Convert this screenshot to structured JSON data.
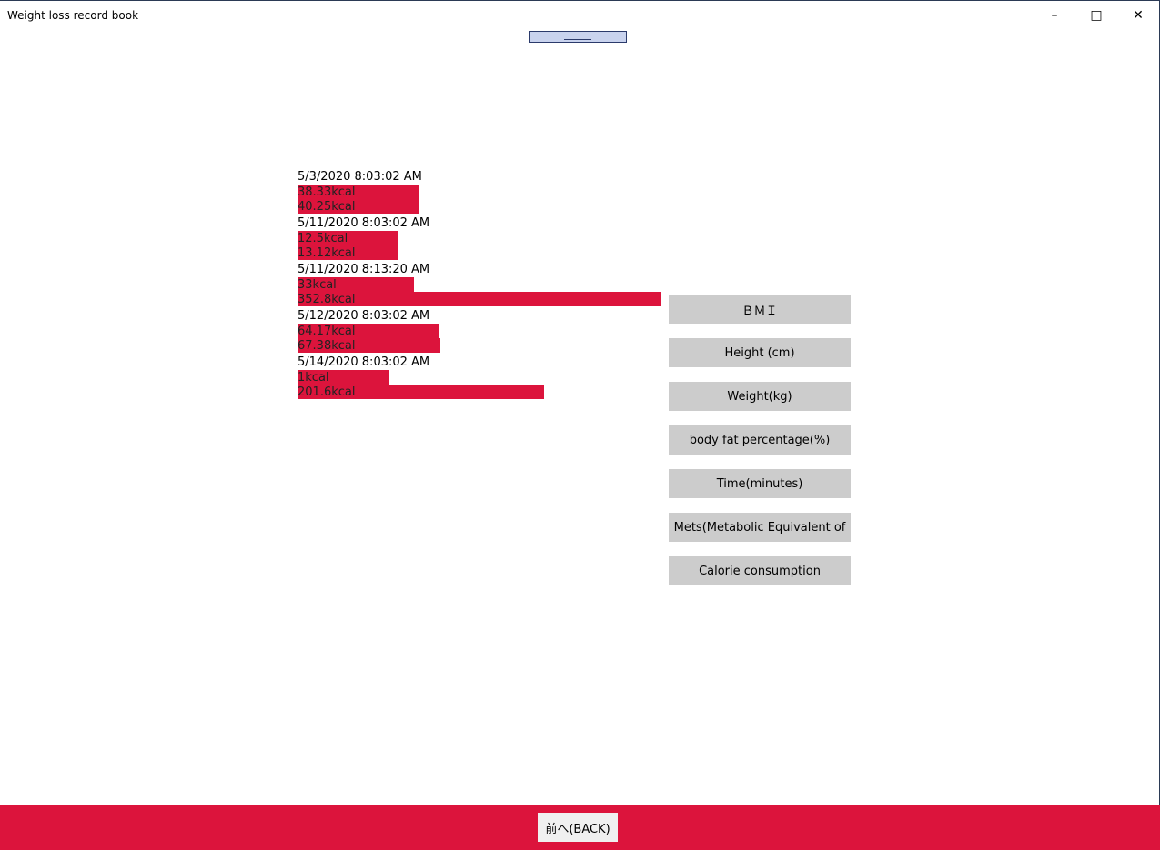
{
  "window": {
    "title": "Weight loss record book",
    "minimize_icon": "minimize-icon",
    "maximize_icon": "maximize-icon",
    "close_icon": "close-icon"
  },
  "records": [
    {
      "date": "5/3/2020 8:03:02 AM",
      "values": [
        {
          "label": "38.33kcal",
          "value": 38.33
        },
        {
          "label": "40.25kcal",
          "value": 40.25
        }
      ]
    },
    {
      "date": "5/11/2020 8:03:02 AM",
      "values": [
        {
          "label": "12.5kcal",
          "value": 12.5
        },
        {
          "label": "13.12kcal",
          "value": 13.12
        }
      ]
    },
    {
      "date": "5/11/2020 8:13:20 AM",
      "values": [
        {
          "label": "33kcal",
          "value": 33
        },
        {
          "label": "352.8kcal",
          "value": 352.8
        }
      ]
    },
    {
      "date": "5/12/2020 8:03:02 AM",
      "values": [
        {
          "label": "64.17kcal",
          "value": 64.17
        },
        {
          "label": "67.38kcal",
          "value": 67.38
        }
      ]
    },
    {
      "date": "5/14/2020 8:03:02 AM",
      "values": [
        {
          "label": "1kcal",
          "value": 1
        },
        {
          "label": "201.6kcal",
          "value": 201.6
        }
      ]
    }
  ],
  "side_buttons": [
    "ＢＭＩ",
    "Height (cm)",
    "Weight(kg)",
    "body fat percentage(%)",
    "Time(minutes)",
    "Mets(Metabolic Equivalent of",
    "Calorie consumption"
  ],
  "footer": {
    "back_label": "前へ(BACK)"
  },
  "colors": {
    "accent": "#DC143C",
    "button": "#CCCCCC"
  }
}
